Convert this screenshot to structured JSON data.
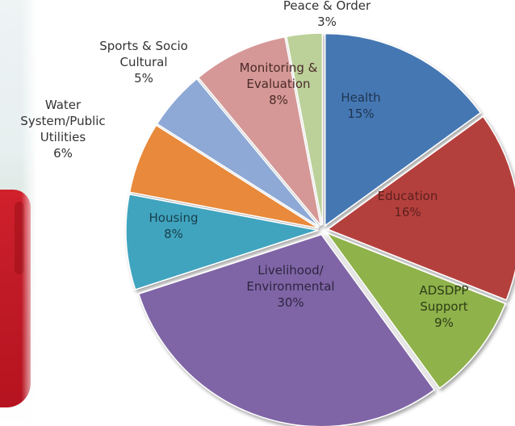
{
  "chart_data": {
    "type": "pie",
    "slices": [
      {
        "name": "Health",
        "label_lines": [
          "Health",
          "15%"
        ],
        "value": 15,
        "color": "#4577b3",
        "text_color": "#1f3550",
        "inside": true
      },
      {
        "name": "Education",
        "label_lines": [
          "Education",
          "16%"
        ],
        "value": 16,
        "color": "#b4403e",
        "text_color": "#5c1f1e",
        "inside": true
      },
      {
        "name": "ADSDPP Support",
        "label_lines": [
          "ADSDPP",
          "Support",
          "9%"
        ],
        "value": 9,
        "color": "#8fb24c",
        "text_color": "#2e3d16",
        "inside": true
      },
      {
        "name": "Livelihood/ Environmental",
        "label_lines": [
          "Livelihood/",
          "Environmental",
          "30%"
        ],
        "value": 30,
        "color": "#7f65a6",
        "text_color": "#2e2540",
        "inside": true
      },
      {
        "name": "Housing",
        "label_lines": [
          "Housing",
          "8%"
        ],
        "value": 8,
        "color": "#3fa4bf",
        "text_color": "#173f4a",
        "inside": true
      },
      {
        "name": "Water System/Public Utilities",
        "label_lines": [
          "Water",
          "System/Public",
          "Utilities",
          "6%"
        ],
        "value": 6,
        "color": "#e8893a",
        "text_color": "#333333",
        "inside": false
      },
      {
        "name": "Sports & Socio Cultural",
        "label_lines": [
          "Sports & Socio",
          "Cultural",
          "5%"
        ],
        "value": 5,
        "color": "#8ea9d6",
        "text_color": "#333333",
        "inside": false
      },
      {
        "name": "Monitoring & Evaluation",
        "label_lines": [
          "Monitoring &",
          "Evaluation",
          "8%"
        ],
        "value": 8,
        "color": "#d59896",
        "text_color": "#4a2a2a",
        "inside": true
      },
      {
        "name": "Peace & Order",
        "label_lines": [
          "Peace & Order",
          "3%"
        ],
        "value": 3,
        "color": "#bcd19a",
        "text_color": "#333333",
        "inside": false
      }
    ]
  }
}
